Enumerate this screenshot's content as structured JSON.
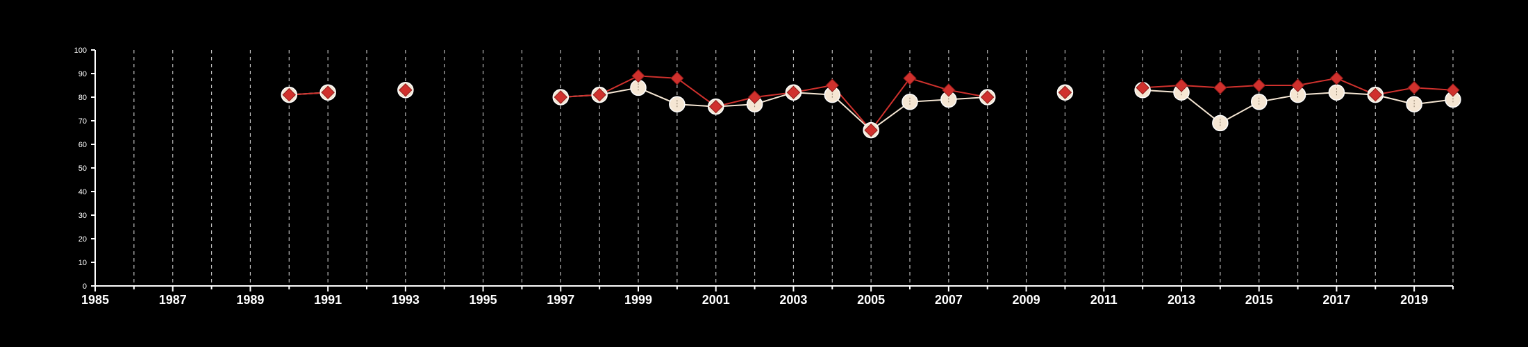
{
  "chart_data": {
    "type": "line",
    "title": "",
    "xlabel": "",
    "ylabel": "",
    "xlim": [
      1985,
      2020
    ],
    "ylim": [
      0,
      100
    ],
    "y_ticks": [
      0,
      10,
      20,
      30,
      40,
      50,
      60,
      70,
      80,
      90,
      100
    ],
    "x_ticks": [
      1985,
      1987,
      1989,
      1991,
      1993,
      1995,
      1997,
      1999,
      2001,
      2003,
      2005,
      2007,
      2009,
      2011,
      2013,
      2015,
      2017,
      2019
    ],
    "grid": "vertical dashed lines at every year",
    "legend": "none",
    "series": [
      {
        "marker": "circle",
        "color": "#f5e6d3",
        "points": [
          [
            1990,
            81
          ],
          [
            1991,
            82
          ],
          [
            1993,
            83
          ],
          [
            1997,
            80
          ],
          [
            1998,
            81
          ],
          [
            1999,
            84
          ],
          [
            2000,
            77
          ],
          [
            2001,
            76
          ],
          [
            2002,
            77
          ],
          [
            2003,
            82
          ],
          [
            2004,
            81
          ],
          [
            2005,
            66
          ],
          [
            2006,
            78
          ],
          [
            2007,
            79
          ],
          [
            2008,
            80
          ],
          [
            2010,
            82
          ],
          [
            2012,
            83
          ],
          [
            2013,
            82
          ],
          [
            2014,
            69
          ],
          [
            2015,
            78
          ],
          [
            2016,
            81
          ],
          [
            2017,
            82
          ],
          [
            2018,
            81
          ],
          [
            2019,
            77
          ],
          [
            2020,
            79
          ]
        ]
      },
      {
        "marker": "diamond",
        "color": "#d0312d",
        "points": [
          [
            1990,
            81
          ],
          [
            1991,
            82
          ],
          [
            1993,
            83
          ],
          [
            1997,
            80
          ],
          [
            1998,
            81
          ],
          [
            1999,
            89
          ],
          [
            2000,
            88
          ],
          [
            2001,
            76
          ],
          [
            2002,
            80
          ],
          [
            2003,
            82
          ],
          [
            2004,
            85
          ],
          [
            2005,
            66
          ],
          [
            2006,
            88
          ],
          [
            2007,
            83
          ],
          [
            2008,
            80
          ],
          [
            2010,
            82
          ],
          [
            2012,
            84
          ],
          [
            2013,
            85
          ],
          [
            2014,
            84
          ],
          [
            2015,
            85
          ],
          [
            2016,
            85
          ],
          [
            2017,
            88
          ],
          [
            2018,
            81
          ],
          [
            2019,
            84
          ],
          [
            2020,
            83
          ]
        ]
      }
    ]
  }
}
